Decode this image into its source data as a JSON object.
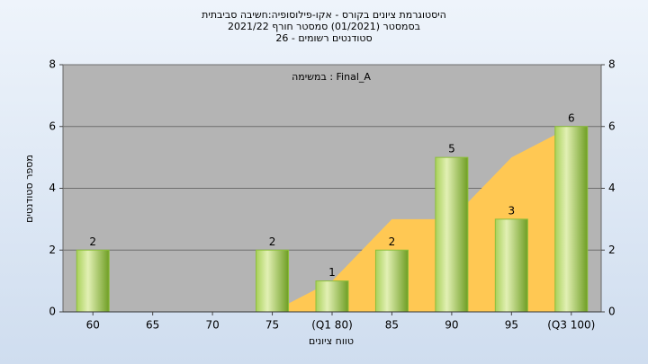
{
  "chart_data": {
    "type": "bar",
    "title": "היסטוגרמת ציונים בקורס - אקו-פילוסופיה:חשיבה סביבתית",
    "subtitle": "בסמסטר  (01/2021)  סמסטר חורף 2021/22",
    "subtitle2": "סטודנטים רשומים - 26",
    "annotation": "במשימה : Final_A",
    "x_label": "טווח ציונים",
    "y_label": "מספר סטודנטים",
    "categories": [
      "60",
      "65",
      "70",
      "75",
      "(Q1 80)",
      "85",
      "90",
      "95",
      "(Q3 100)"
    ],
    "series": [
      {
        "type": "bar",
        "color": "#8cbf3a",
        "values": [
          2,
          null,
          null,
          2,
          1,
          2,
          5,
          3,
          6
        ]
      },
      {
        "type": "area",
        "color": "#ffc853",
        "values": [
          null,
          null,
          null,
          0,
          1,
          3,
          3,
          5,
          6
        ]
      }
    ],
    "ylim": [
      0,
      8
    ],
    "yticks": [
      0,
      2,
      4,
      6,
      8
    ],
    "y2lim": [
      0,
      8
    ],
    "y2ticks": [
      0,
      2,
      4,
      6,
      8
    ],
    "grid": true
  }
}
